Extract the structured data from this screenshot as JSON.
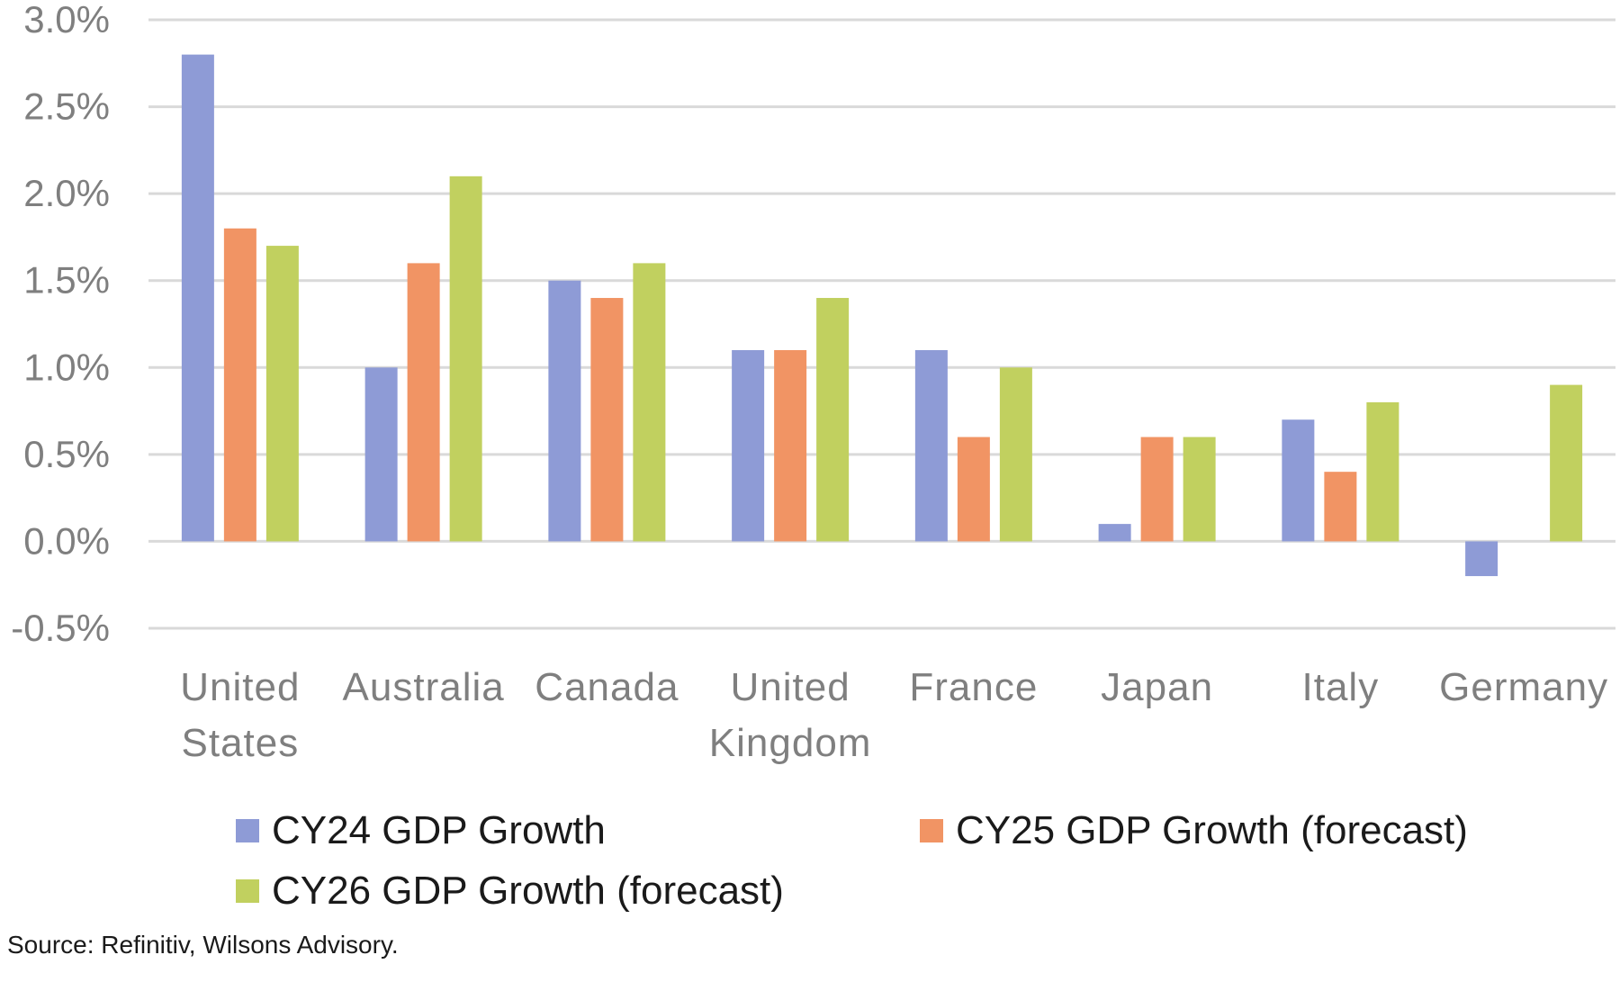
{
  "chart_data": {
    "type": "bar",
    "categories": [
      [
        "United",
        "States"
      ],
      [
        "Australia"
      ],
      [
        "Canada"
      ],
      [
        "United",
        "Kingdom"
      ],
      [
        "France"
      ],
      [
        "Japan"
      ],
      [
        "Italy"
      ],
      [
        "Germany"
      ]
    ],
    "series": [
      {
        "name": "CY24 GDP Growth",
        "color": "#8E9BD6",
        "values": [
          2.8,
          1.0,
          1.5,
          1.1,
          1.1,
          0.1,
          0.7,
          -0.2
        ]
      },
      {
        "name": "CY25 GDP Growth (forecast)",
        "color": "#F19464",
        "values": [
          1.8,
          1.6,
          1.4,
          1.1,
          0.6,
          0.6,
          0.4,
          0.0
        ]
      },
      {
        "name": "CY26 GDP Growth (forecast)",
        "color": "#C1D05F",
        "values": [
          1.7,
          2.1,
          1.6,
          1.4,
          1.0,
          0.6,
          0.8,
          0.9
        ]
      }
    ],
    "ylim": [
      -0.5,
      3.0
    ],
    "yticks": [
      "-0.5%",
      "0.0%",
      "0.5%",
      "1.0%",
      "1.5%",
      "2.0%",
      "2.5%",
      "3.0%"
    ],
    "grid": true,
    "legend_position": "bottom"
  },
  "legend": {
    "items": [
      {
        "label": "CY24 GDP Growth",
        "color": "#8E9BD6"
      },
      {
        "label": "CY25 GDP Growth (forecast)",
        "color": "#F19464"
      },
      {
        "label": "CY26 GDP Growth (forecast)",
        "color": "#C1D05F"
      }
    ]
  },
  "source": "Source: Refinitiv, Wilsons Advisory."
}
